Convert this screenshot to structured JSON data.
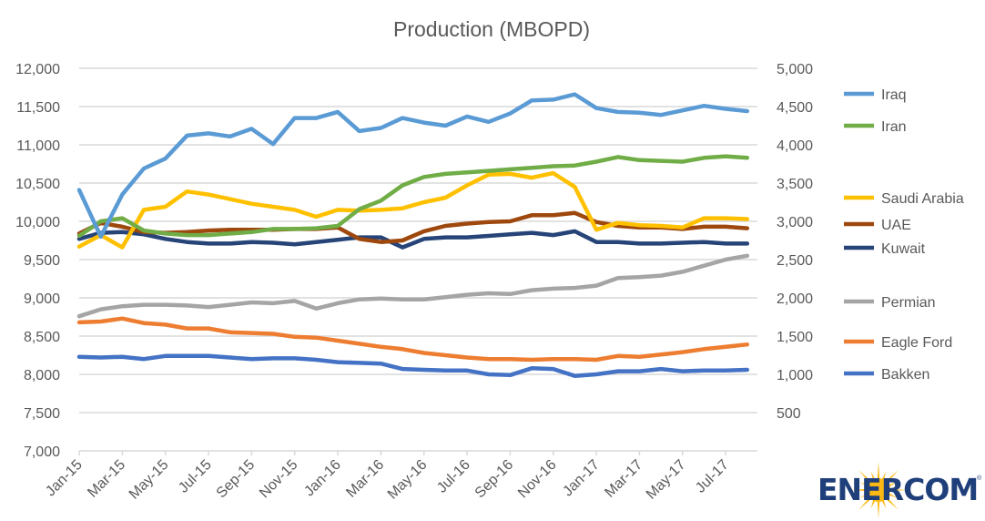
{
  "chart_data": {
    "type": "line",
    "title": "Production (MBOPD)",
    "xlabel": "",
    "ylabel_left": "",
    "ylabel_right": "",
    "x": [
      "Jan-15",
      "Feb-15",
      "Mar-15",
      "Apr-15",
      "May-15",
      "Jun-15",
      "Jul-15",
      "Aug-15",
      "Sep-15",
      "Oct-15",
      "Nov-15",
      "Dec-15",
      "Jan-16",
      "Feb-16",
      "Mar-16",
      "Apr-16",
      "May-16",
      "Jun-16",
      "Jul-16",
      "Aug-16",
      "Sep-16",
      "Oct-16",
      "Nov-16",
      "Dec-16",
      "Jan-17",
      "Feb-17",
      "Mar-17",
      "Apr-17",
      "May-17",
      "Jun-17",
      "Jul-17",
      "Aug-17"
    ],
    "x_tick_labels": [
      "Jan-15",
      "Mar-15",
      "May-15",
      "Jul-15",
      "Sep-15",
      "Nov-15",
      "Jan-16",
      "Mar-16",
      "May-16",
      "Jul-16",
      "Sep-16",
      "Nov-16",
      "Jan-17",
      "Mar-17",
      "May-17",
      "Jul-17"
    ],
    "ylim_left": [
      7000,
      12000
    ],
    "ylim_right": [
      0,
      5000
    ],
    "y_ticks_left": [
      "7,000",
      "7,500",
      "8,000",
      "8,500",
      "9,000",
      "9,500",
      "10,000",
      "10,500",
      "11,000",
      "11,500",
      "12,000"
    ],
    "y_ticks_right": [
      "500",
      "1,000",
      "1,500",
      "2,000",
      "2,500",
      "3,000",
      "3,500",
      "4,000",
      "4,500",
      "5,000"
    ],
    "grid": true,
    "legend_position": "right",
    "series": [
      {
        "name": "Iraq",
        "axis": "right",
        "color": "#5b9bd5",
        "values": [
          3410,
          2800,
          3350,
          3690,
          3820,
          4120,
          4150,
          4110,
          4210,
          4010,
          4350,
          4350,
          4430,
          4180,
          4220,
          4350,
          4290,
          4250,
          4370,
          4300,
          4410,
          4580,
          4590,
          4660,
          4480,
          4430,
          4420,
          4390,
          4450,
          4510,
          4470,
          4440
        ]
      },
      {
        "name": "Iran",
        "axis": "right",
        "color": "#70ad47",
        "values": [
          2810,
          3000,
          3040,
          2880,
          2840,
          2820,
          2820,
          2840,
          2860,
          2900,
          2900,
          2910,
          2940,
          3160,
          3270,
          3470,
          3580,
          3620,
          3640,
          3660,
          3680,
          3700,
          3720,
          3730,
          3780,
          3840,
          3800,
          3790,
          3780,
          3830,
          3850,
          3830
        ]
      },
      {
        "name": "Saudi Arabia",
        "axis": "left",
        "color": "#ffc000",
        "values": [
          9670,
          9820,
          9660,
          10150,
          10190,
          10390,
          10350,
          10290,
          10230,
          10190,
          10150,
          10060,
          10150,
          10140,
          10150,
          10170,
          10250,
          10310,
          10470,
          10610,
          10620,
          10570,
          10630,
          10450,
          9890,
          9980,
          9950,
          9940,
          9920,
          10040,
          10040,
          10030
        ]
      },
      {
        "name": "UAE",
        "axis": "right",
        "color": "#9e480e",
        "values": [
          2840,
          2980,
          2930,
          2860,
          2850,
          2860,
          2880,
          2890,
          2890,
          2890,
          2900,
          2900,
          2920,
          2770,
          2730,
          2750,
          2870,
          2940,
          2970,
          2990,
          3000,
          3080,
          3080,
          3110,
          2990,
          2940,
          2920,
          2920,
          2900,
          2930,
          2930,
          2910
        ]
      },
      {
        "name": "Kuwait",
        "axis": "right",
        "color": "#264478",
        "values": [
          2770,
          2850,
          2860,
          2830,
          2770,
          2730,
          2710,
          2710,
          2730,
          2720,
          2700,
          2730,
          2760,
          2790,
          2790,
          2660,
          2770,
          2790,
          2790,
          2810,
          2830,
          2850,
          2820,
          2870,
          2730,
          2730,
          2710,
          2710,
          2720,
          2730,
          2710,
          2710
        ]
      },
      {
        "name": "Permian",
        "axis": "right",
        "color": "#a5a5a5",
        "values": [
          1760,
          1850,
          1890,
          1910,
          1910,
          1900,
          1880,
          1910,
          1940,
          1930,
          1960,
          1860,
          1930,
          1980,
          1990,
          1980,
          1980,
          2010,
          2040,
          2060,
          2050,
          2100,
          2120,
          2130,
          2160,
          2260,
          2270,
          2290,
          2340,
          2420,
          2500,
          2550
        ]
      },
      {
        "name": "Eagle Ford",
        "axis": "right",
        "color": "#ed7d31",
        "values": [
          1680,
          1690,
          1730,
          1670,
          1650,
          1600,
          1600,
          1550,
          1540,
          1530,
          1490,
          1480,
          1440,
          1400,
          1360,
          1330,
          1280,
          1250,
          1220,
          1200,
          1200,
          1190,
          1200,
          1200,
          1190,
          1240,
          1230,
          1260,
          1290,
          1330,
          1360,
          1390
        ]
      },
      {
        "name": "Bakken",
        "axis": "right",
        "color": "#4472c4",
        "values": [
          1230,
          1220,
          1230,
          1200,
          1240,
          1240,
          1240,
          1220,
          1200,
          1210,
          1210,
          1190,
          1160,
          1150,
          1140,
          1070,
          1060,
          1050,
          1050,
          1000,
          990,
          1080,
          1070,
          980,
          1000,
          1040,
          1040,
          1070,
          1040,
          1050,
          1050,
          1060
        ]
      }
    ]
  },
  "logo": {
    "text": "ENERCOM",
    "registered": "®",
    "sun_color": "#fdb913",
    "text_color": "#1f3f7a"
  }
}
